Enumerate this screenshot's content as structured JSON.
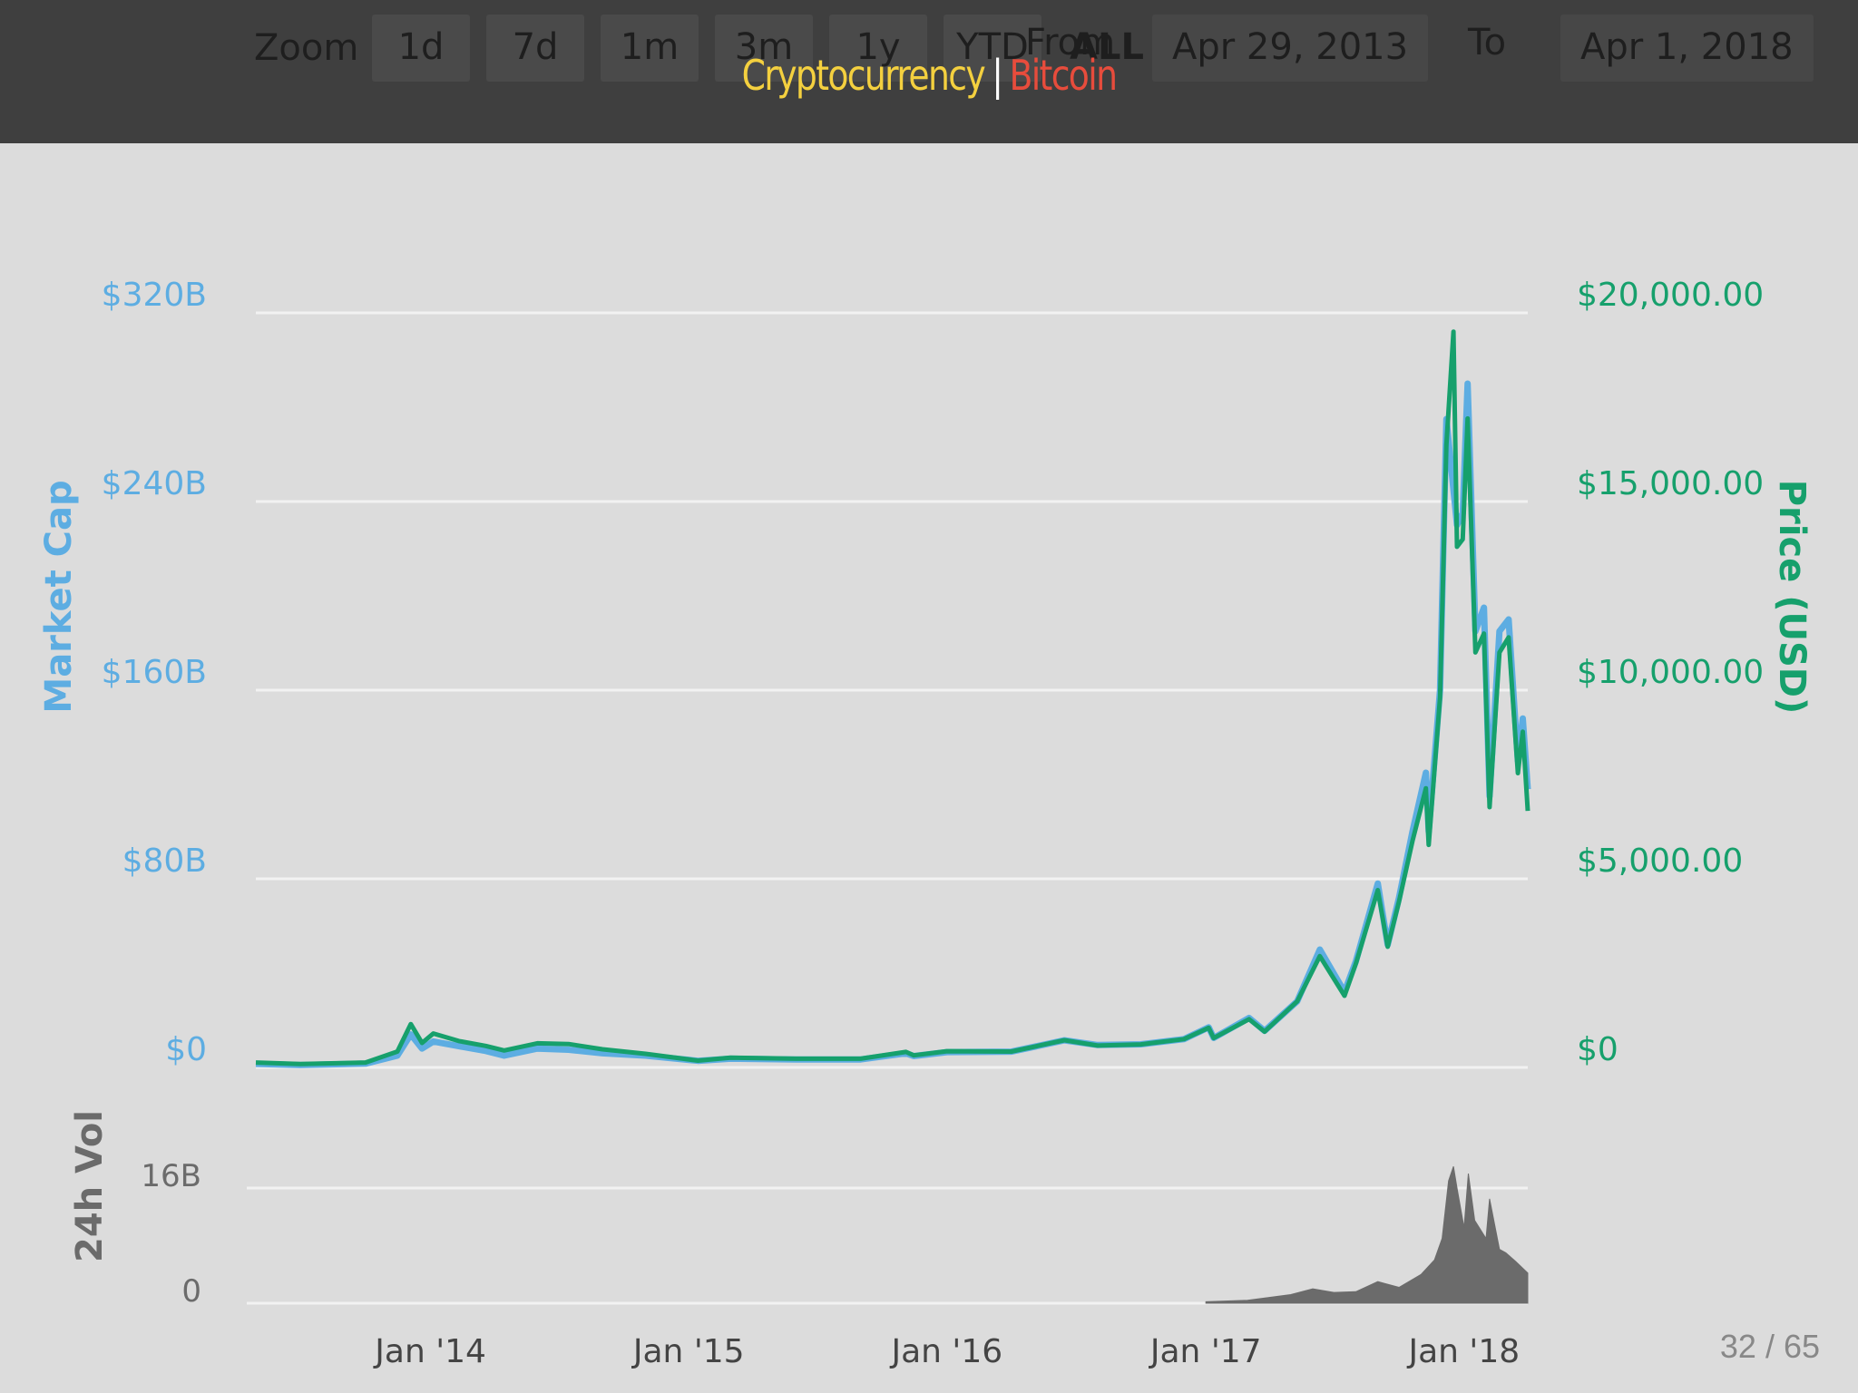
{
  "header": {
    "zoom_label": "Zoom",
    "buttons": [
      "1d",
      "7d",
      "1m",
      "3m",
      "1y",
      "YTD",
      "ALL"
    ],
    "from_label": "From",
    "from_date": "Apr 29, 2013",
    "to_label": "To",
    "to_date": "Apr 1, 2018"
  },
  "slide": {
    "title_main": "Cryptocurrency",
    "title_sep": "|",
    "title_sub": "Bitcoin",
    "page": "32 / 65"
  },
  "colors": {
    "market_cap": "#5dade2",
    "price": "#16a06c",
    "volume": "#6b6b6b",
    "grid": "#f2f2f2"
  },
  "chart_data": {
    "type": "line",
    "x_start": "2013-04-29",
    "x_end": "2018-04-01",
    "xticks": [
      {
        "label": "Jan '14",
        "date": "2014-01-01"
      },
      {
        "label": "Jan '15",
        "date": "2015-01-01"
      },
      {
        "label": "Jan '16",
        "date": "2016-01-01"
      },
      {
        "label": "Jan '17",
        "date": "2017-01-01"
      },
      {
        "label": "Jan '18",
        "date": "2018-01-01"
      }
    ],
    "left_axis": {
      "label": "Market Cap",
      "ylim": [
        0,
        320
      ],
      "ticks": [
        {
          "v": 0,
          "label": "$0"
        },
        {
          "v": 80,
          "label": "$80B"
        },
        {
          "v": 160,
          "label": "$160B"
        },
        {
          "v": 240,
          "label": "$240B"
        },
        {
          "v": 320,
          "label": "$320B"
        }
      ]
    },
    "right_axis": {
      "label": "Price (USD)",
      "ylim": [
        0,
        20000
      ],
      "ticks": [
        {
          "v": 0,
          "label": "$0"
        },
        {
          "v": 5000,
          "label": "$5,000.00"
        },
        {
          "v": 10000,
          "label": "$10,000.00"
        },
        {
          "v": 15000,
          "label": "$15,000.00"
        },
        {
          "v": 20000,
          "label": "$20,000.00"
        }
      ]
    },
    "volume_axis": {
      "label": "24h Vol",
      "ylim": [
        0,
        20
      ],
      "ticks": [
        {
          "v": 0,
          "label": "0"
        },
        {
          "v": 16,
          "label": "16B"
        }
      ]
    },
    "series": [
      {
        "name": "Market Cap",
        "axis": "left",
        "points": [
          [
            "2013-04-29",
            1.5
          ],
          [
            "2013-07-01",
            1.0
          ],
          [
            "2013-10-01",
            1.6
          ],
          [
            "2013-11-15",
            5
          ],
          [
            "2013-12-04",
            14
          ],
          [
            "2013-12-20",
            8
          ],
          [
            "2014-01-05",
            11
          ],
          [
            "2014-02-10",
            9
          ],
          [
            "2014-03-20",
            7
          ],
          [
            "2014-04-15",
            5
          ],
          [
            "2014-06-01",
            8
          ],
          [
            "2014-07-15",
            7.5
          ],
          [
            "2014-09-01",
            6
          ],
          [
            "2014-11-01",
            5
          ],
          [
            "2015-01-14",
            2.8
          ],
          [
            "2015-03-01",
            3.7
          ],
          [
            "2015-06-01",
            3.4
          ],
          [
            "2015-09-01",
            3.4
          ],
          [
            "2015-11-04",
            6
          ],
          [
            "2015-11-15",
            4.8
          ],
          [
            "2016-01-01",
            6.5
          ],
          [
            "2016-04-01",
            6.7
          ],
          [
            "2016-06-15",
            11.5
          ],
          [
            "2016-08-01",
            9.5
          ],
          [
            "2016-10-01",
            9.8
          ],
          [
            "2016-12-01",
            12
          ],
          [
            "2017-01-05",
            17
          ],
          [
            "2017-01-12",
            12.5
          ],
          [
            "2017-03-03",
            21
          ],
          [
            "2017-03-25",
            15.5
          ],
          [
            "2017-05-10",
            28
          ],
          [
            "2017-06-11",
            50
          ],
          [
            "2017-07-16",
            32
          ],
          [
            "2017-08-01",
            45
          ],
          [
            "2017-09-01",
            78
          ],
          [
            "2017-09-15",
            52
          ],
          [
            "2017-10-01",
            72
          ],
          [
            "2017-10-20",
            100
          ],
          [
            "2017-11-08",
            125
          ],
          [
            "2017-11-12",
            100
          ],
          [
            "2017-11-28",
            160
          ],
          [
            "2017-12-07",
            275
          ],
          [
            "2017-12-17],",
            326
          ],
          [
            "2017-12-22",
            230
          ],
          [
            "2017-12-30",
            235
          ],
          [
            "2018-01-06",
            290
          ],
          [
            "2018-01-17",
            185
          ],
          [
            "2018-01-29",
            195
          ],
          [
            "2018-02-06",
            115
          ],
          [
            "2018-02-20",
            185
          ],
          [
            "2018-03-05",
            190
          ],
          [
            "2018-03-18",
            130
          ],
          [
            "2018-03-25",
            148
          ],
          [
            "2018-04-01",
            118
          ]
        ]
      },
      {
        "name": "Price (USD)",
        "axis": "right",
        "points": [
          [
            "2013-04-29",
            130
          ],
          [
            "2013-07-01",
            90
          ],
          [
            "2013-10-01",
            130
          ],
          [
            "2013-11-15",
            420
          ],
          [
            "2013-12-04",
            1150
          ],
          [
            "2013-12-20",
            650
          ],
          [
            "2014-01-05",
            900
          ],
          [
            "2014-02-10",
            700
          ],
          [
            "2014-03-20",
            570
          ],
          [
            "2014-04-15",
            450
          ],
          [
            "2014-06-01",
            640
          ],
          [
            "2014-07-15",
            620
          ],
          [
            "2014-09-01",
            480
          ],
          [
            "2014-11-01",
            360
          ],
          [
            "2015-01-14",
            180
          ],
          [
            "2015-03-01",
            260
          ],
          [
            "2015-06-01",
            230
          ],
          [
            "2015-09-01",
            230
          ],
          [
            "2015-11-04",
            410
          ],
          [
            "2015-11-15",
            320
          ],
          [
            "2016-01-01",
            430
          ],
          [
            "2016-04-01",
            420
          ],
          [
            "2016-06-15",
            720
          ],
          [
            "2016-08-01",
            580
          ],
          [
            "2016-10-01",
            610
          ],
          [
            "2016-12-01",
            750
          ],
          [
            "2017-01-05",
            1050
          ],
          [
            "2017-01-12",
            780
          ],
          [
            "2017-03-03",
            1280
          ],
          [
            "2017-03-25",
            950
          ],
          [
            "2017-05-10",
            1750
          ],
          [
            "2017-06-11",
            2950
          ],
          [
            "2017-07-16",
            1900
          ],
          [
            "2017-08-01",
            2750
          ],
          [
            "2017-09-01",
            4700
          ],
          [
            "2017-09-15",
            3200
          ],
          [
            "2017-10-01",
            4400
          ],
          [
            "2017-10-20",
            6000
          ],
          [
            "2017-11-08",
            7400
          ],
          [
            "2017-11-12",
            5900
          ],
          [
            "2017-11-28",
            9800
          ],
          [
            "2017-12-07",
            16500
          ],
          [
            "2017-12-17",
            19500
          ],
          [
            "2017-12-22",
            13800
          ],
          [
            "2017-12-30",
            14000
          ],
          [
            "2018-01-06",
            17200
          ],
          [
            "2018-01-17",
            11000
          ],
          [
            "2018-01-29",
            11500
          ],
          [
            "2018-02-06",
            6900
          ],
          [
            "2018-02-20",
            11000
          ],
          [
            "2018-03-05",
            11400
          ],
          [
            "2018-03-18",
            7800
          ],
          [
            "2018-03-25",
            8900
          ],
          [
            "2018-04-01",
            6800
          ]
        ]
      },
      {
        "name": "24h Vol",
        "axis": "volume",
        "points": [
          [
            "2017-01-01",
            0.2
          ],
          [
            "2017-03-01",
            0.4
          ],
          [
            "2017-05-01",
            1.2
          ],
          [
            "2017-06-01",
            2.0
          ],
          [
            "2017-07-01",
            1.5
          ],
          [
            "2017-08-01",
            1.6
          ],
          [
            "2017-09-01",
            3.0
          ],
          [
            "2017-10-01",
            2.2
          ],
          [
            "2017-11-01",
            4.0
          ],
          [
            "2017-11-20",
            6.0
          ],
          [
            "2017-12-01",
            9.0
          ],
          [
            "2017-12-10",
            17.0
          ],
          [
            "2017-12-17",
            19.0
          ],
          [
            "2017-12-22",
            16.0
          ],
          [
            "2018-01-01",
            10.5
          ],
          [
            "2018-01-07",
            18.0
          ],
          [
            "2018-01-16",
            11.5
          ],
          [
            "2018-02-01",
            9.0
          ],
          [
            "2018-02-06",
            14.5
          ],
          [
            "2018-02-20",
            7.5
          ],
          [
            "2018-03-01",
            7.0
          ],
          [
            "2018-03-15",
            5.8
          ],
          [
            "2018-04-01",
            4.2
          ]
        ]
      }
    ]
  }
}
